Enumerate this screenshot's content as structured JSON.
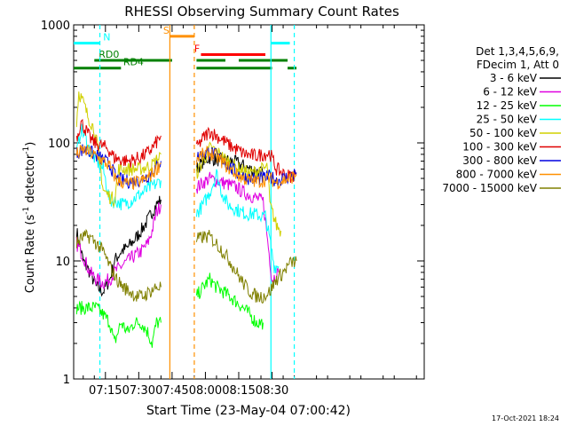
{
  "chart_data": {
    "type": "line",
    "title": "RHESSI Observing Summary Count Rates",
    "xlabel": "Start Time (23-May-04 07:00:42)",
    "ylabel_main": "Count Rate (s",
    "ylabel_sup1": "-1",
    "ylabel_mid": " detector",
    "ylabel_sup2": "-1",
    "ylabel_end": ")",
    "timestamp": "17-Oct-2021 18:24",
    "y_scale": "log",
    "ylim": [
      1,
      1000
    ],
    "xlim_minutes": [
      420.7,
      578.5
    ],
    "x_ticks": [
      {
        "label": "07:15",
        "t": 435
      },
      {
        "label": "07:30",
        "t": 450
      },
      {
        "label": "07:45",
        "t": 465
      },
      {
        "label": "08:00",
        "t": 480
      },
      {
        "label": "08:15",
        "t": 495
      },
      {
        "label": "08:30",
        "t": 510
      }
    ],
    "y_ticks": [
      {
        "label": "1",
        "v": 1
      },
      {
        "label": "10",
        "v": 10
      },
      {
        "label": "100",
        "v": 100
      },
      {
        "label": "1000",
        "v": 1000
      }
    ],
    "legend_header": [
      "Det 1,3,4,5,6,9,",
      "FDecim 1, Att 0"
    ],
    "legend_position": "right",
    "series": [
      {
        "name": "3 - 6 keV",
        "color": "#000000",
        "points": [
          [
            422,
            18
          ],
          [
            425,
            10
          ],
          [
            428,
            8
          ],
          [
            431,
            6
          ],
          [
            434,
            5.5
          ],
          [
            437,
            7
          ],
          [
            439,
            10
          ],
          [
            442,
            12
          ],
          [
            445,
            13
          ],
          [
            448,
            15
          ],
          [
            451,
            18
          ],
          [
            454,
            22
          ],
          [
            456,
            26
          ],
          [
            458,
            30
          ],
          [
            460,
            33
          ],
          [
            476,
            60
          ],
          [
            479,
            70
          ],
          [
            482,
            75
          ],
          [
            485,
            72
          ],
          [
            488,
            72
          ],
          [
            491,
            70
          ],
          [
            494,
            68
          ],
          [
            497,
            64
          ],
          [
            500,
            60
          ],
          [
            503,
            58
          ],
          [
            506,
            55
          ]
        ]
      },
      {
        "name": "6 - 12 keV",
        "color": "#e000e0",
        "points": [
          [
            422,
            14
          ],
          [
            425,
            11
          ],
          [
            428,
            8
          ],
          [
            431,
            7
          ],
          [
            434,
            6.5
          ],
          [
            437,
            7
          ],
          [
            439,
            8
          ],
          [
            442,
            9
          ],
          [
            445,
            10
          ],
          [
            448,
            11
          ],
          [
            451,
            12
          ],
          [
            454,
            14
          ],
          [
            456,
            18
          ],
          [
            458,
            26
          ],
          [
            460,
            30
          ],
          [
            476,
            42
          ],
          [
            479,
            46
          ],
          [
            482,
            50
          ],
          [
            485,
            48
          ],
          [
            488,
            46
          ],
          [
            491,
            44
          ],
          [
            494,
            42
          ],
          [
            497,
            38
          ],
          [
            500,
            36
          ],
          [
            503,
            34
          ],
          [
            506,
            32
          ],
          [
            510,
            7
          ],
          [
            513,
            8
          ]
        ]
      },
      {
        "name": "12 - 25 keV",
        "color": "#00ff00",
        "points": [
          [
            422,
            4
          ],
          [
            425,
            4
          ],
          [
            428,
            4
          ],
          [
            431,
            4
          ],
          [
            434,
            3.5
          ],
          [
            437,
            3
          ],
          [
            439,
            2
          ],
          [
            442,
            3
          ],
          [
            445,
            2.5
          ],
          [
            448,
            3
          ],
          [
            451,
            3
          ],
          [
            454,
            2.5
          ],
          [
            456,
            2
          ],
          [
            458,
            3
          ],
          [
            460,
            3
          ],
          [
            476,
            5
          ],
          [
            479,
            6
          ],
          [
            482,
            7
          ],
          [
            485,
            6
          ],
          [
            488,
            5.5
          ],
          [
            491,
            5
          ],
          [
            494,
            4.5
          ],
          [
            497,
            4
          ],
          [
            500,
            3.5
          ],
          [
            503,
            3
          ],
          [
            506,
            3
          ]
        ]
      },
      {
        "name": "25 - 50 keV",
        "color": "#00ffff",
        "points": [
          [
            422,
            80
          ],
          [
            424,
            130
          ],
          [
            426,
            110
          ],
          [
            428,
            85
          ],
          [
            431,
            70
          ],
          [
            434,
            60
          ],
          [
            437,
            32
          ],
          [
            440,
            32
          ],
          [
            443,
            30
          ],
          [
            446,
            32
          ],
          [
            449,
            35
          ],
          [
            452,
            38
          ],
          [
            455,
            42
          ],
          [
            458,
            45
          ],
          [
            460,
            48
          ],
          [
            476,
            25
          ],
          [
            479,
            30
          ],
          [
            482,
            38
          ],
          [
            485,
            55
          ],
          [
            487,
            40
          ],
          [
            490,
            30
          ],
          [
            493,
            28
          ],
          [
            496,
            26
          ],
          [
            499,
            25
          ],
          [
            502,
            25
          ],
          [
            505,
            24
          ],
          [
            507,
            24
          ],
          [
            509,
            15
          ],
          [
            511,
            9
          ],
          [
            513,
            9
          ]
        ]
      },
      {
        "name": "50 - 100 keV",
        "color": "#d0d000",
        "points": [
          [
            422,
            150
          ],
          [
            423,
            270
          ],
          [
            425,
            220
          ],
          [
            427,
            170
          ],
          [
            430,
            130
          ],
          [
            432,
            80
          ],
          [
            434,
            40
          ],
          [
            437,
            35
          ],
          [
            439,
            33
          ],
          [
            441,
            60
          ],
          [
            444,
            60
          ],
          [
            447,
            60
          ],
          [
            450,
            60
          ],
          [
            453,
            62
          ],
          [
            456,
            65
          ],
          [
            459,
            75
          ],
          [
            460,
            80
          ],
          [
            476,
            55
          ],
          [
            479,
            70
          ],
          [
            482,
            90
          ],
          [
            485,
            85
          ],
          [
            488,
            75
          ],
          [
            491,
            68
          ],
          [
            494,
            62
          ],
          [
            497,
            58
          ],
          [
            500,
            55
          ],
          [
            503,
            58
          ],
          [
            506,
            60
          ],
          [
            508,
            62
          ],
          [
            509,
            30
          ],
          [
            512,
            20
          ],
          [
            514,
            18
          ]
        ]
      },
      {
        "name": "100 - 300 keV",
        "color": "#e00000",
        "points": [
          [
            422,
            110
          ],
          [
            424,
            150
          ],
          [
            426,
            130
          ],
          [
            428,
            110
          ],
          [
            430,
            100
          ],
          [
            433,
            95
          ],
          [
            436,
            90
          ],
          [
            439,
            75
          ],
          [
            442,
            72
          ],
          [
            445,
            70
          ],
          [
            448,
            72
          ],
          [
            451,
            76
          ],
          [
            454,
            82
          ],
          [
            457,
            95
          ],
          [
            460,
            115
          ],
          [
            476,
            90
          ],
          [
            479,
            110
          ],
          [
            482,
            125
          ],
          [
            485,
            115
          ],
          [
            488,
            105
          ],
          [
            491,
            95
          ],
          [
            494,
            88
          ],
          [
            497,
            82
          ],
          [
            500,
            78
          ],
          [
            503,
            78
          ],
          [
            506,
            80
          ],
          [
            509,
            82
          ],
          [
            512,
            60
          ],
          [
            515,
            55
          ],
          [
            518,
            52
          ],
          [
            521,
            55
          ]
        ]
      },
      {
        "name": "300 - 800 keV",
        "color": "#0000e0",
        "points": [
          [
            422,
            82
          ],
          [
            425,
            88
          ],
          [
            428,
            84
          ],
          [
            431,
            78
          ],
          [
            434,
            72
          ],
          [
            437,
            65
          ],
          [
            440,
            50
          ],
          [
            443,
            48
          ],
          [
            446,
            47
          ],
          [
            449,
            48
          ],
          [
            452,
            50
          ],
          [
            455,
            54
          ],
          [
            458,
            62
          ],
          [
            460,
            70
          ],
          [
            476,
            75
          ],
          [
            479,
            82
          ],
          [
            482,
            84
          ],
          [
            485,
            78
          ],
          [
            488,
            70
          ],
          [
            491,
            62
          ],
          [
            494,
            56
          ],
          [
            497,
            52
          ],
          [
            500,
            50
          ],
          [
            503,
            49
          ],
          [
            506,
            50
          ],
          [
            509,
            52
          ],
          [
            512,
            48
          ],
          [
            515,
            50
          ],
          [
            518,
            52
          ],
          [
            521,
            56
          ]
        ]
      },
      {
        "name": "800 - 7000 keV",
        "color": "#ff9000",
        "points": [
          [
            422,
            80
          ],
          [
            425,
            87
          ],
          [
            428,
            83
          ],
          [
            431,
            76
          ],
          [
            434,
            70
          ],
          [
            437,
            63
          ],
          [
            440,
            48
          ],
          [
            443,
            46
          ],
          [
            446,
            45
          ],
          [
            449,
            46
          ],
          [
            452,
            48
          ],
          [
            455,
            52
          ],
          [
            458,
            60
          ],
          [
            460,
            68
          ],
          [
            476,
            73
          ],
          [
            479,
            80
          ],
          [
            482,
            82
          ],
          [
            485,
            76
          ],
          [
            488,
            68
          ],
          [
            491,
            60
          ],
          [
            494,
            54
          ],
          [
            497,
            50
          ],
          [
            500,
            48
          ],
          [
            503,
            47
          ],
          [
            506,
            48
          ],
          [
            509,
            50
          ],
          [
            512,
            46
          ],
          [
            515,
            48
          ],
          [
            518,
            50
          ],
          [
            521,
            54
          ]
        ]
      },
      {
        "name": "7000 - 15000 keV",
        "color": "#808000",
        "points": [
          [
            422,
            14
          ],
          [
            425,
            16
          ],
          [
            428,
            16
          ],
          [
            431,
            14
          ],
          [
            434,
            12
          ],
          [
            437,
            9
          ],
          [
            440,
            7
          ],
          [
            443,
            6
          ],
          [
            446,
            5.5
          ],
          [
            449,
            5
          ],
          [
            452,
            5
          ],
          [
            455,
            5.5
          ],
          [
            458,
            6
          ],
          [
            460,
            6
          ],
          [
            476,
            15
          ],
          [
            479,
            16
          ],
          [
            482,
            16
          ],
          [
            485,
            14
          ],
          [
            488,
            12
          ],
          [
            491,
            10
          ],
          [
            494,
            8
          ],
          [
            497,
            6.5
          ],
          [
            500,
            5.5
          ],
          [
            503,
            5
          ],
          [
            506,
            5
          ],
          [
            509,
            5.5
          ],
          [
            512,
            7
          ],
          [
            515,
            8
          ],
          [
            518,
            9.5
          ],
          [
            521,
            10
          ]
        ]
      }
    ],
    "state_bars": [
      {
        "label": "N",
        "color": "#00ffff",
        "v": 700,
        "segments": [
          [
            420.7,
            432.5
          ],
          [
            509.5,
            518
          ]
        ],
        "label_at": 434
      },
      {
        "label": "RD0",
        "color": "#008000",
        "v": 500,
        "segments": [
          [
            430,
            465
          ],
          [
            476,
            489
          ],
          [
            495,
            517
          ]
        ],
        "label_at": 432
      },
      {
        "label": "RD4",
        "color": "#008000",
        "v": 430,
        "segments": [
          [
            420.7,
            442
          ],
          [
            476,
            510
          ],
          [
            517,
            521
          ]
        ],
        "label_at": 443
      },
      {
        "label": "S",
        "color": "#ff9000",
        "v": 800,
        "segments": [
          [
            464,
            475
          ]
        ],
        "label_at": 461
      },
      {
        "label": "F",
        "color": "#ff0000",
        "v": 560,
        "segments": [
          [
            478,
            507
          ]
        ],
        "label_at": 475
      }
    ],
    "markers": [
      {
        "color": "#00ffff",
        "t": 432.5,
        "dash": true
      },
      {
        "color": "#00ffff",
        "t": 509.5,
        "dash": false
      },
      {
        "color": "#00ffff",
        "t": 520,
        "dash": true
      },
      {
        "color": "#ff9000",
        "t": 464,
        "dash": false
      },
      {
        "color": "#ff9000",
        "t": 475,
        "dash": true
      }
    ],
    "gap_minutes": [
      461,
      475
    ]
  }
}
